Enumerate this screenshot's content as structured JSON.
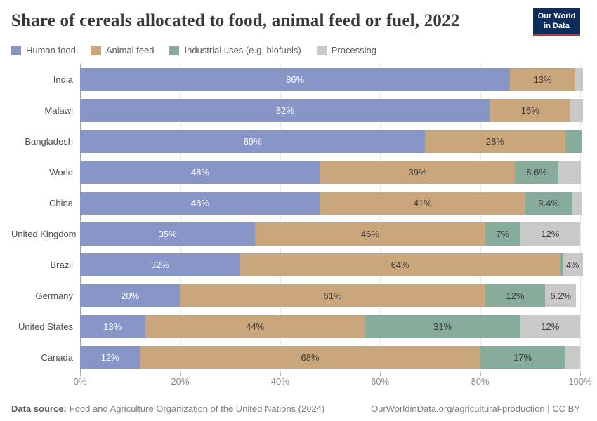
{
  "header": {
    "title": "Share of cereals allocated to food, animal feed or fuel, 2022",
    "logo": {
      "line1": "Our World",
      "line2": "in Data",
      "bg_color": "#0d2e5a",
      "stripe_color": "#dc2a20"
    }
  },
  "legend": [
    {
      "label": "Human food",
      "color": "#8795c7",
      "text_color": "#ffffff"
    },
    {
      "label": "Animal feed",
      "color": "#c9a67c",
      "text_color": "#3c3c3c"
    },
    {
      "label": "Industrial uses (e.g. biofuels)",
      "color": "#88ac9b",
      "text_color": "#3c3c3c"
    },
    {
      "label": "Processing",
      "color": "#c9c9c9",
      "text_color": "#3c3c3c"
    }
  ],
  "chart_data": {
    "type": "bar",
    "stacked": true,
    "orientation": "horizontal",
    "title": "Share of cereals allocated to food, animal feed or fuel, 2022",
    "series_names": [
      "Human food",
      "Animal feed",
      "Industrial uses (e.g. biofuels)",
      "Processing"
    ],
    "x_axis": {
      "range": [
        0,
        100
      ],
      "ticks": [
        0,
        20,
        40,
        60,
        80,
        100
      ],
      "tick_labels": [
        "0%",
        "20%",
        "40%",
        "60%",
        "80%",
        "100%"
      ],
      "gridlines": "dashed"
    },
    "categories": [
      "India",
      "Malawi",
      "Bangladesh",
      "World",
      "China",
      "United Kingdom",
      "Brazil",
      "Germany",
      "United States",
      "Canada"
    ],
    "rows": [
      {
        "country": "India",
        "segments": [
          {
            "series": "Human food",
            "value": 86,
            "label": "86%"
          },
          {
            "series": "Animal feed",
            "value": 13,
            "label": "13%"
          },
          {
            "series": "Processing",
            "value": 1.5,
            "label": ""
          }
        ]
      },
      {
        "country": "Malawi",
        "segments": [
          {
            "series": "Human food",
            "value": 82,
            "label": "82%"
          },
          {
            "series": "Animal feed",
            "value": 16,
            "label": "16%"
          },
          {
            "series": "Processing",
            "value": 2.5,
            "label": ""
          }
        ]
      },
      {
        "country": "Bangladesh",
        "segments": [
          {
            "series": "Human food",
            "value": 69,
            "label": "69%"
          },
          {
            "series": "Animal feed",
            "value": 28,
            "label": "28%"
          },
          {
            "series": "Industrial uses (e.g. biofuels)",
            "value": 3.4,
            "label": ""
          }
        ]
      },
      {
        "country": "World",
        "segments": [
          {
            "series": "Human food",
            "value": 48,
            "label": "48%"
          },
          {
            "series": "Animal feed",
            "value": 39,
            "label": "39%"
          },
          {
            "series": "Industrial uses (e.g. biofuels)",
            "value": 8.6,
            "label": "8.6%"
          },
          {
            "series": "Processing",
            "value": 4.5,
            "label": ""
          }
        ]
      },
      {
        "country": "China",
        "segments": [
          {
            "series": "Human food",
            "value": 48,
            "label": "48%"
          },
          {
            "series": "Animal feed",
            "value": 41,
            "label": "41%"
          },
          {
            "series": "Industrial uses (e.g. biofuels)",
            "value": 9.4,
            "label": "9.4%"
          },
          {
            "series": "Processing",
            "value": 2,
            "label": ""
          }
        ]
      },
      {
        "country": "United Kingdom",
        "segments": [
          {
            "series": "Human food",
            "value": 35,
            "label": "35%"
          },
          {
            "series": "Animal feed",
            "value": 46,
            "label": "46%"
          },
          {
            "series": "Industrial uses (e.g. biofuels)",
            "value": 7,
            "label": "7%"
          },
          {
            "series": "Processing",
            "value": 12,
            "label": "12%"
          }
        ]
      },
      {
        "country": "Brazil",
        "segments": [
          {
            "series": "Human food",
            "value": 32,
            "label": "32%"
          },
          {
            "series": "Animal feed",
            "value": 64,
            "label": "64%"
          },
          {
            "series": "Industrial uses (e.g. biofuels)",
            "value": 0.5,
            "label": ""
          },
          {
            "series": "Processing",
            "value": 4,
            "label": "4%"
          }
        ]
      },
      {
        "country": "Germany",
        "segments": [
          {
            "series": "Human food",
            "value": 20,
            "label": "20%"
          },
          {
            "series": "Animal feed",
            "value": 61,
            "label": "61%"
          },
          {
            "series": "Industrial uses (e.g. biofuels)",
            "value": 12,
            "label": "12%"
          },
          {
            "series": "Processing",
            "value": 6.2,
            "label": "6.2%"
          }
        ]
      },
      {
        "country": "United States",
        "segments": [
          {
            "series": "Human food",
            "value": 13,
            "label": "13%"
          },
          {
            "series": "Animal feed",
            "value": 44,
            "label": "44%"
          },
          {
            "series": "Industrial uses (e.g. biofuels)",
            "value": 31,
            "label": "31%"
          },
          {
            "series": "Processing",
            "value": 12,
            "label": "12%"
          }
        ]
      },
      {
        "country": "Canada",
        "segments": [
          {
            "series": "Human food",
            "value": 12,
            "label": "12%"
          },
          {
            "series": "Animal feed",
            "value": 68,
            "label": "68%"
          },
          {
            "series": "Industrial uses (e.g. biofuels)",
            "value": 17,
            "label": "17%"
          },
          {
            "series": "Processing",
            "value": 3,
            "label": ""
          }
        ]
      }
    ]
  },
  "footer": {
    "source_label": "Data source:",
    "source_text": "Food and Agriculture Organization of the United Nations (2024)",
    "credit": "OurWorldinData.org/agricultural-production | CC BY"
  }
}
